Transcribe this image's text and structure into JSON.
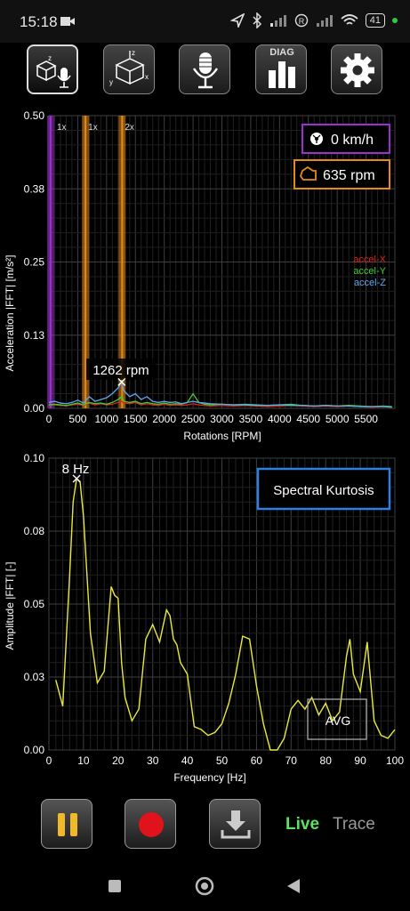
{
  "status": {
    "time": "15:18",
    "battery": "41"
  },
  "colors": {
    "x": "#e0211c",
    "y": "#3ecf2c",
    "z": "#5fa8ef",
    "avg": "#e8e840",
    "speed": "#9b2fd0",
    "rpm": "#e68a1a",
    "accent": "#2d7fe0",
    "live": "#5fe05f"
  },
  "toolbar": {
    "items": [
      "accel-mic-icon",
      "accel-xyz-icon",
      "microphone-icon",
      "diag-icon",
      "gear-icon"
    ],
    "diag_label": "DIAG"
  },
  "rpm_chart": {
    "ylabel": "Acceleration |FFT| [m/s²]",
    "xlabel": "Rotations [RPM]",
    "yticks": [
      "0.50",
      "0.38",
      "0.25",
      "0.13",
      "0.00"
    ],
    "xticks": [
      "0",
      "500",
      "1000",
      "1500",
      "2000",
      "2500",
      "3000",
      "3500",
      "4000",
      "4500",
      "5000",
      "5500"
    ],
    "speed": "0 km/h",
    "rpm": "635 rpm",
    "marker_label": "1262 rpm",
    "order_labels": [
      "1x",
      "1x",
      "2x"
    ],
    "legend": [
      "accel-X",
      "accel-Y",
      "accel-Z"
    ]
  },
  "chart_data": [
    {
      "type": "line",
      "xlim": [
        0,
        6000
      ],
      "ylim": [
        0,
        0.5
      ],
      "x": [
        0,
        100,
        200,
        300,
        400,
        500,
        600,
        700,
        800,
        900,
        1000,
        1100,
        1200,
        1262,
        1300,
        1400,
        1500,
        1600,
        1700,
        1800,
        1900,
        2000,
        2100,
        2200,
        2300,
        2400,
        2500,
        2600,
        2700,
        2800,
        3000,
        3200,
        3400,
        3600,
        3800,
        4000,
        4200,
        4400,
        4600,
        4800,
        5000,
        5200,
        5400,
        5600,
        5800,
        5950
      ],
      "series": [
        {
          "name": "accel-X",
          "values": [
            0.005,
            0.006,
            0.005,
            0.004,
            0.006,
            0.007,
            0.005,
            0.009,
            0.006,
            0.008,
            0.006,
            0.007,
            0.01,
            0.012,
            0.009,
            0.008,
            0.01,
            0.006,
            0.008,
            0.006,
            0.005,
            0.007,
            0.005,
            0.006,
            0.005,
            0.006,
            0.008,
            0.006,
            0.005,
            0.004,
            0.005,
            0.004,
            0.005,
            0.004,
            0.003,
            0.004,
            0.005,
            0.004,
            0.003,
            0.004,
            0.003,
            0.004,
            0.003,
            0.002,
            0.003,
            0.002
          ]
        },
        {
          "name": "accel-Y",
          "values": [
            0.006,
            0.007,
            0.006,
            0.005,
            0.007,
            0.009,
            0.006,
            0.01,
            0.008,
            0.009,
            0.007,
            0.01,
            0.015,
            0.02,
            0.012,
            0.01,
            0.012,
            0.008,
            0.01,
            0.008,
            0.007,
            0.009,
            0.007,
            0.008,
            0.007,
            0.01,
            0.025,
            0.01,
            0.007,
            0.006,
            0.007,
            0.006,
            0.007,
            0.006,
            0.005,
            0.006,
            0.007,
            0.005,
            0.004,
            0.005,
            0.004,
            0.005,
            0.004,
            0.003,
            0.004,
            0.003
          ]
        },
        {
          "name": "accel-Z",
          "values": [
            0.01,
            0.012,
            0.009,
            0.008,
            0.01,
            0.014,
            0.009,
            0.02,
            0.012,
            0.015,
            0.018,
            0.025,
            0.035,
            0.045,
            0.03,
            0.02,
            0.025,
            0.015,
            0.02,
            0.012,
            0.01,
            0.012,
            0.01,
            0.011,
            0.008,
            0.01,
            0.012,
            0.01,
            0.009,
            0.008,
            0.007,
            0.006,
            0.006,
            0.005,
            0.005,
            0.006,
            0.005,
            0.005,
            0.004,
            0.005,
            0.004,
            0.004,
            0.003,
            0.003,
            0.003,
            0.002
          ]
        }
      ],
      "order_lines_rpm": [
        {
          "value": 30
        },
        {
          "value": 635
        },
        {
          "value": 1270
        }
      ]
    },
    {
      "type": "line",
      "xlim": [
        0,
        100
      ],
      "ylim": [
        0,
        0.1
      ],
      "x": [
        2,
        4,
        6,
        7,
        8,
        9,
        10,
        11,
        12,
        14,
        16,
        18,
        19,
        20,
        21,
        22,
        24,
        26,
        28,
        30,
        32,
        34,
        35,
        36,
        37,
        38,
        40,
        42,
        44,
        46,
        48,
        50,
        52,
        54,
        56,
        58,
        60,
        62,
        64,
        66,
        68,
        70,
        72,
        74,
        76,
        78,
        80,
        82,
        84,
        86,
        87,
        88,
        90,
        92,
        94,
        96,
        98,
        100
      ],
      "series": [
        {
          "name": "",
          "values": [
            0.024,
            0.015,
            0.06,
            0.085,
            0.093,
            0.092,
            0.08,
            0.06,
            0.04,
            0.023,
            0.027,
            0.056,
            0.053,
            0.052,
            0.03,
            0.018,
            0.01,
            0.014,
            0.038,
            0.043,
            0.037,
            0.048,
            0.046,
            0.038,
            0.036,
            0.03,
            0.026,
            0.008,
            0.007,
            0.005,
            0.006,
            0.009,
            0.016,
            0.026,
            0.039,
            0.038,
            0.022,
            0.009,
            0.0,
            0.0,
            0.004,
            0.014,
            0.017,
            0.014,
            0.018,
            0.012,
            0.016,
            0.01,
            0.013,
            0.032,
            0.038,
            0.026,
            0.02,
            0.037,
            0.01,
            0.005,
            0.004,
            0.007
          ]
        }
      ]
    }
  ],
  "freq_chart": {
    "ylabel": "Amplitude |FFT| [-]",
    "xlabel": "Frequency [Hz]",
    "yticks": [
      "0.10",
      "0.08",
      "0.05",
      "0.03",
      "0.00"
    ],
    "xticks": [
      "0",
      "10",
      "20",
      "30",
      "40",
      "50",
      "60",
      "70",
      "80",
      "90",
      "100"
    ],
    "peak_label": "8 Hz",
    "kurtosis_button": "Spectral Kurtosis",
    "avg_label": "AVG"
  },
  "bottom": {
    "live": "Live",
    "trace": "Trace"
  }
}
